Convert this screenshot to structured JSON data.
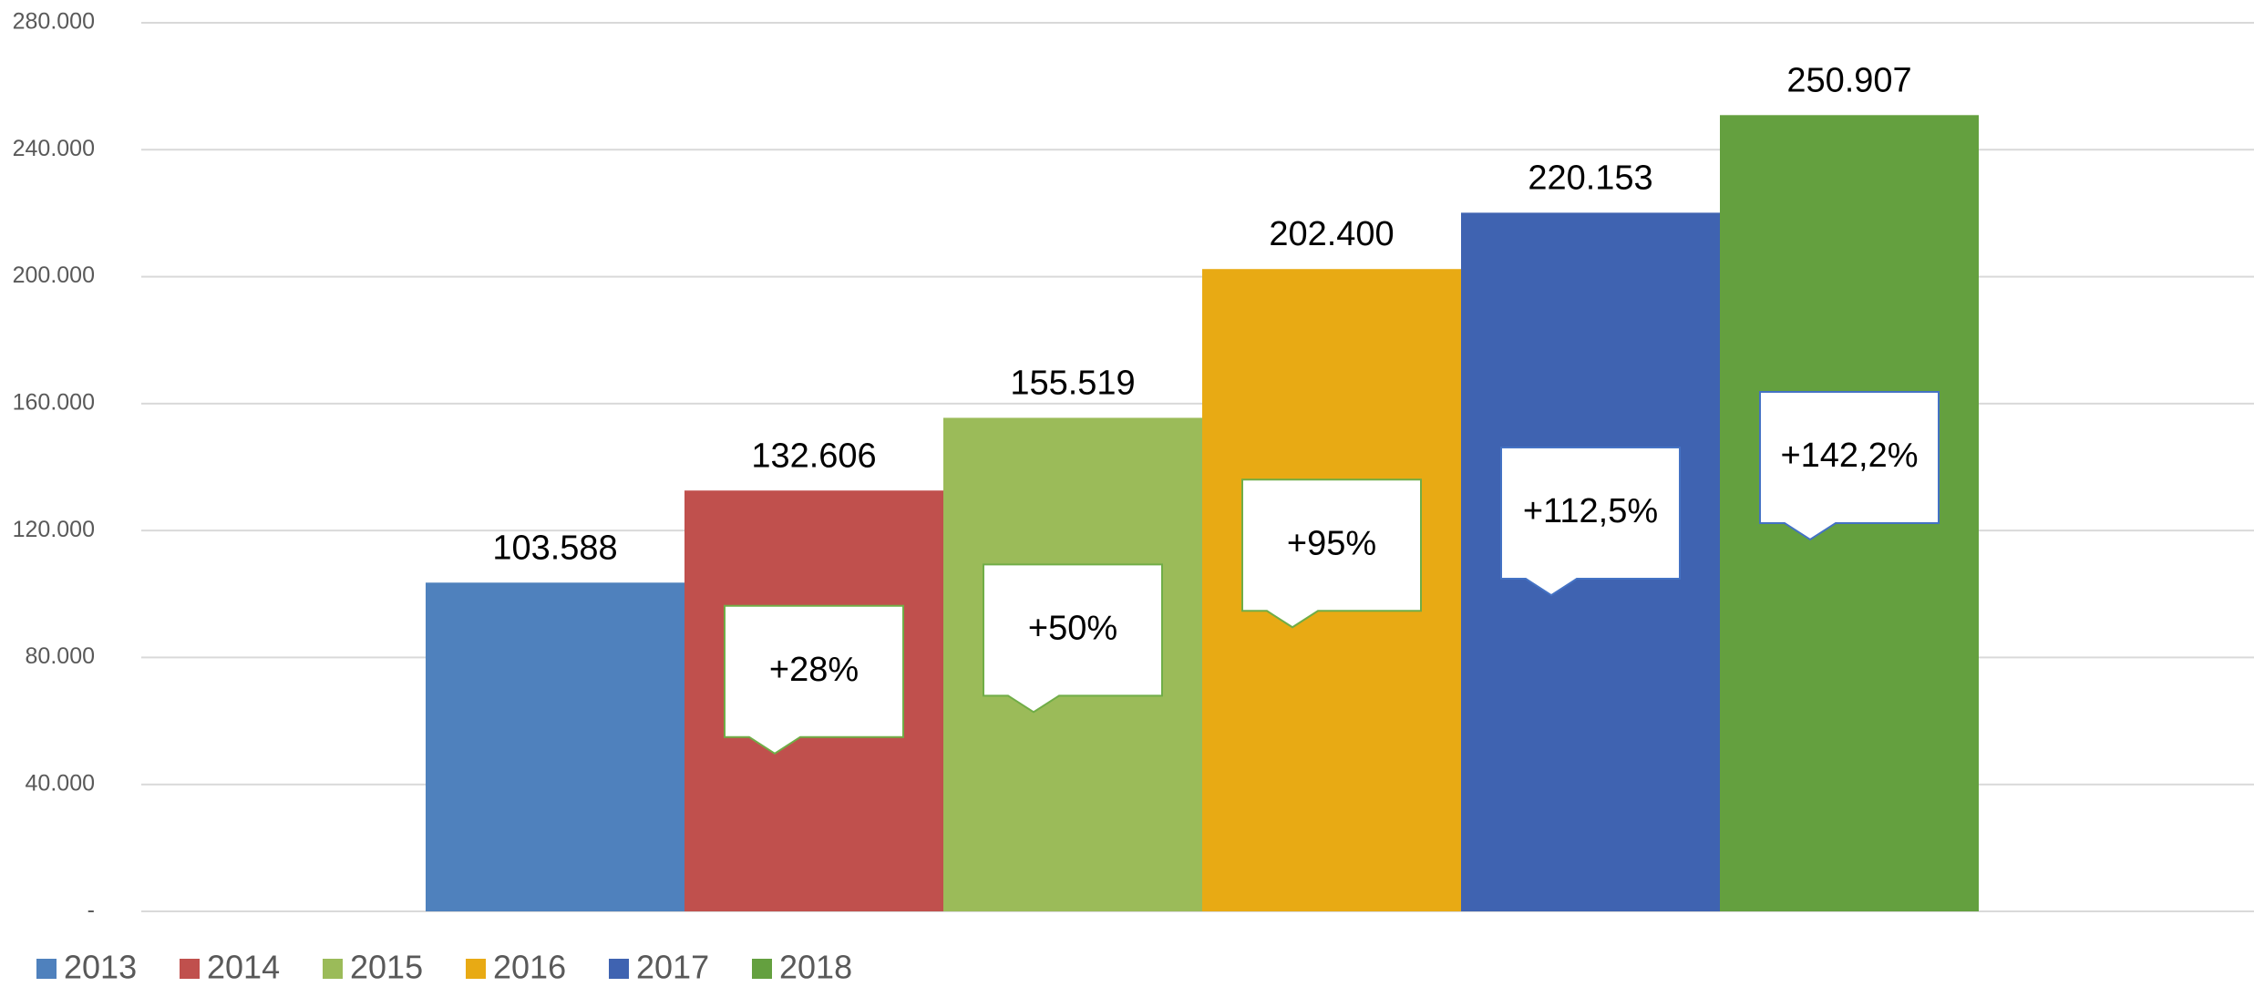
{
  "chart_data": {
    "type": "bar",
    "series": [
      {
        "name": "2013",
        "color": "#4f81bd",
        "values": [
          103588
        ],
        "value_labels": [
          "103.588"
        ]
      },
      {
        "name": "2014",
        "color": "#c0504d",
        "values": [
          132606
        ],
        "value_labels": [
          "132.606"
        ]
      },
      {
        "name": "2015",
        "color": "#9bbb59",
        "values": [
          155519
        ],
        "value_labels": [
          "155.519"
        ]
      },
      {
        "name": "2016",
        "color": "#e8aa14",
        "values": [
          202400
        ],
        "value_labels": [
          "202.400"
        ]
      },
      {
        "name": "2017",
        "color": "#3f63b1",
        "values": [
          220153
        ],
        "value_labels": [
          "220.153"
        ]
      },
      {
        "name": "2018",
        "color": "#64a03f",
        "values": [
          250907
        ],
        "value_labels": [
          "250.907"
        ]
      }
    ],
    "annotations": [
      "+28%",
      "+50%",
      "+95%",
      "+112,5%",
      "+142,2%"
    ],
    "ylim": [
      0,
      280000
    ],
    "yticks": [
      {
        "value": 0,
        "label": "-"
      },
      {
        "value": 40000,
        "label": "40.000"
      },
      {
        "value": 80000,
        "label": "80.000"
      },
      {
        "value": 120000,
        "label": "120.000"
      },
      {
        "value": 160000,
        "label": "160.000"
      },
      {
        "value": 200000,
        "label": "200.000"
      },
      {
        "value": 240000,
        "label": "240.000"
      },
      {
        "value": 280000,
        "label": "280.000"
      }
    ],
    "grid": true,
    "legend": "bottom"
  }
}
